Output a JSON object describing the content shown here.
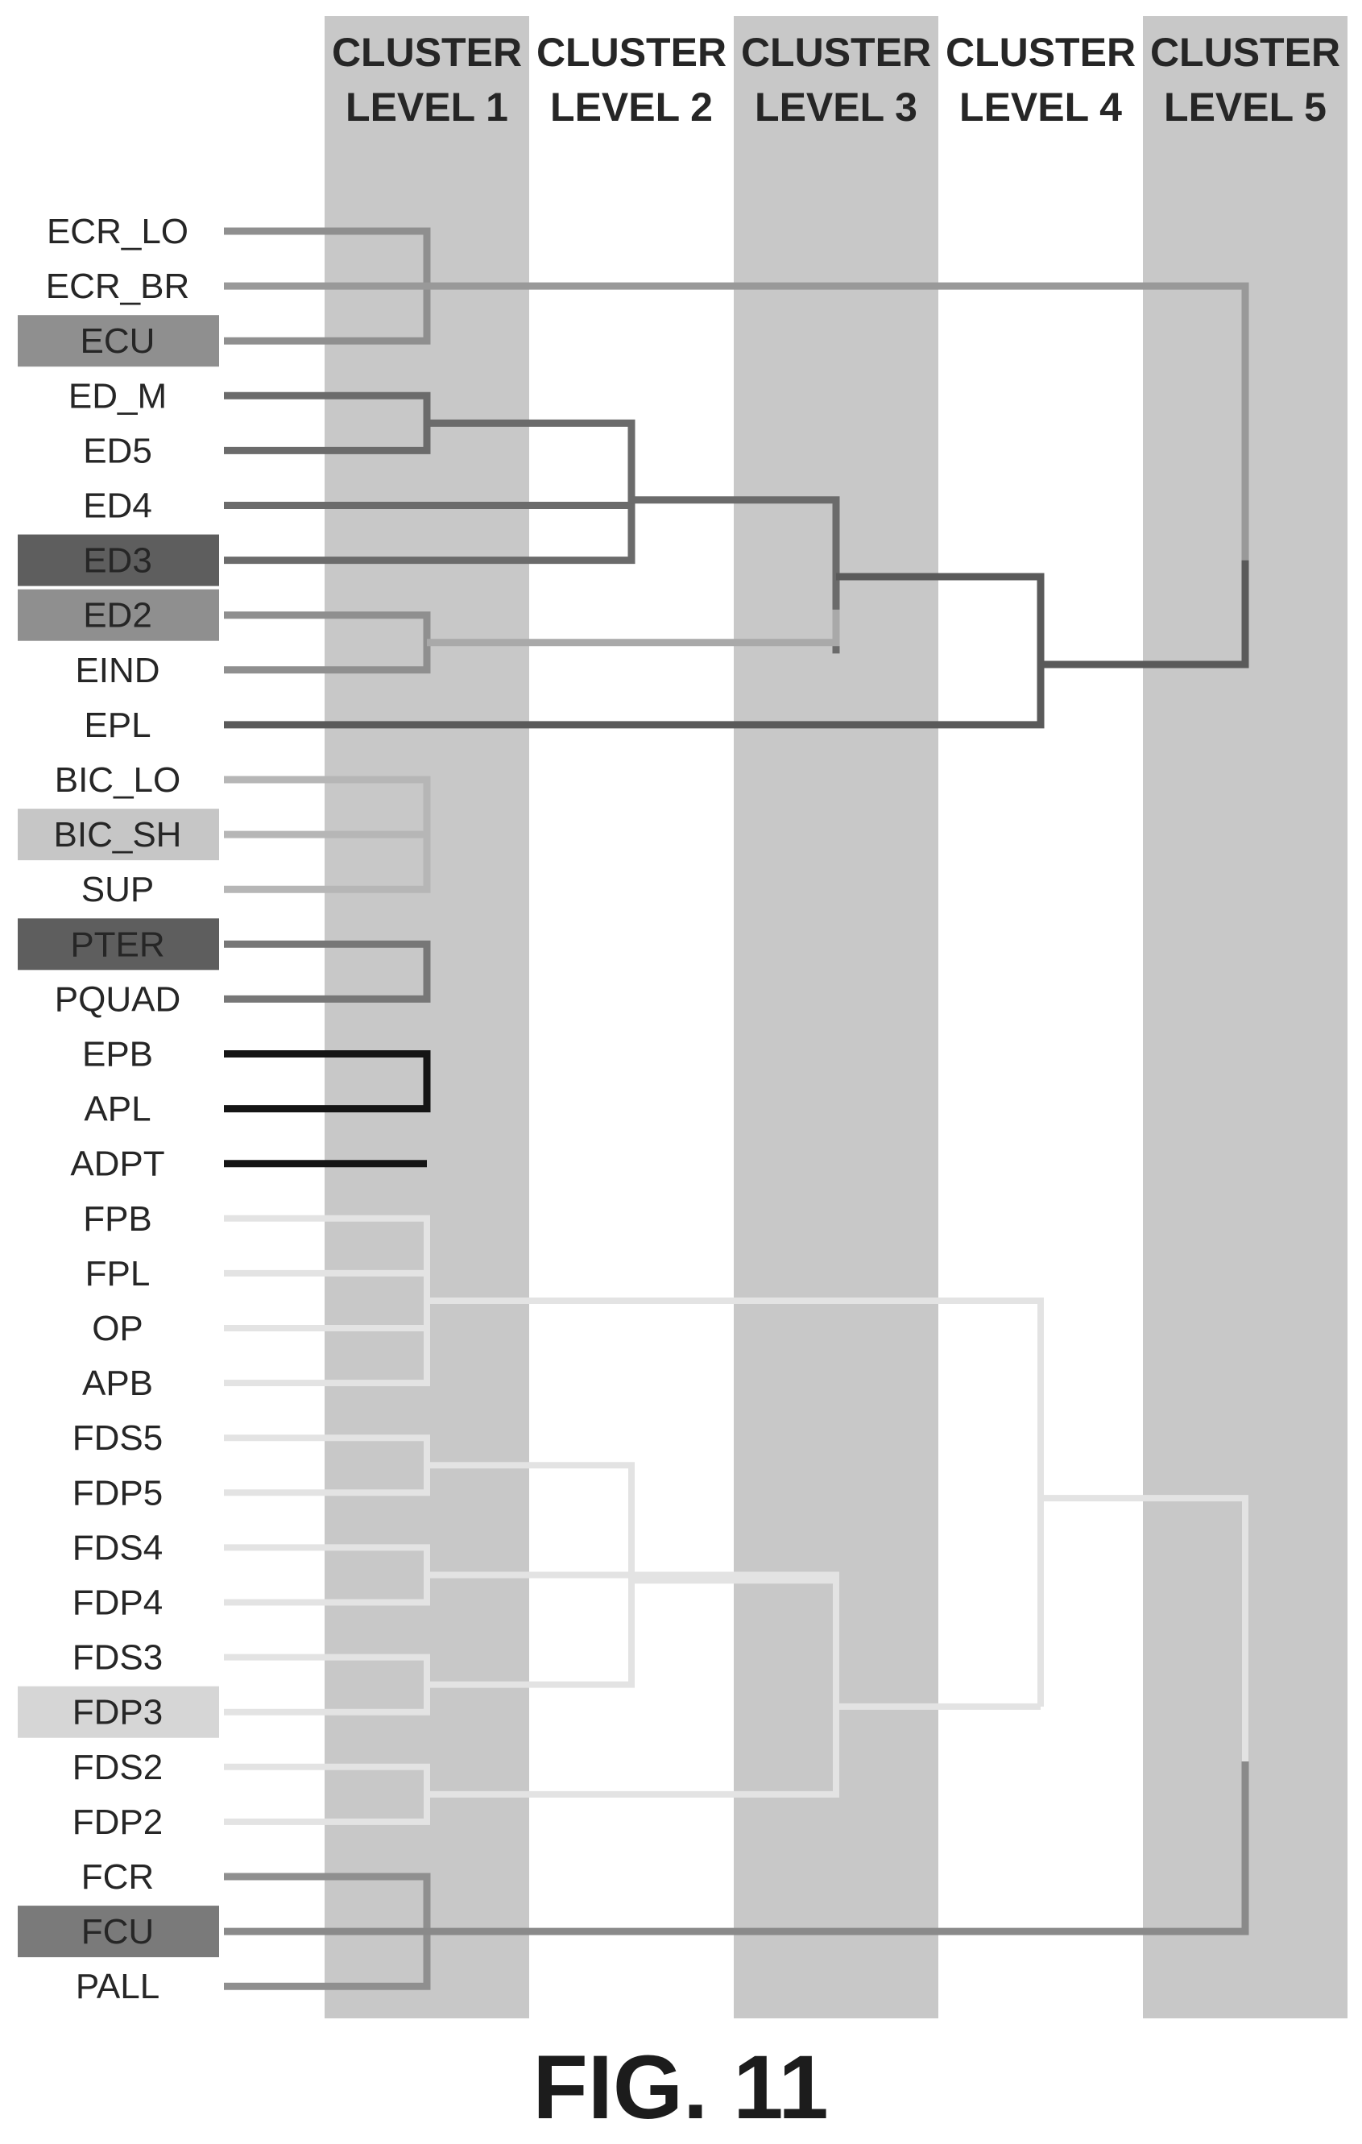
{
  "columns": [
    {
      "line1": "CLUSTER",
      "line2": "LEVEL 1"
    },
    {
      "line1": "CLUSTER",
      "line2": "LEVEL 2"
    },
    {
      "line1": "CLUSTER",
      "line2": "LEVEL 3"
    },
    {
      "line1": "CLUSTER",
      "line2": "LEVEL 4"
    },
    {
      "line1": "CLUSTER",
      "line2": "LEVEL 5"
    }
  ],
  "muscles": [
    {
      "label": "ECR_LO"
    },
    {
      "label": "ECR_BR"
    },
    {
      "label": "ECU",
      "highlight": "#8f8f8f"
    },
    {
      "label": "ED_M"
    },
    {
      "label": "ED5"
    },
    {
      "label": "ED4"
    },
    {
      "label": "ED3",
      "highlight": "#5e5e5e"
    },
    {
      "label": "ED2",
      "highlight": "#8f8f8f"
    },
    {
      "label": "EIND"
    },
    {
      "label": "EPL"
    },
    {
      "label": "BIC_LO"
    },
    {
      "label": "BIC_SH",
      "highlight": "#c6c6c6"
    },
    {
      "label": "SUP"
    },
    {
      "label": "PTER",
      "highlight": "#5e5e5e"
    },
    {
      "label": "PQUAD"
    },
    {
      "label": "EPB"
    },
    {
      "label": "APL"
    },
    {
      "label": "ADPT"
    },
    {
      "label": "FPB"
    },
    {
      "label": "FPL"
    },
    {
      "label": "OP"
    },
    {
      "label": "APB"
    },
    {
      "label": "FDS5"
    },
    {
      "label": "FDP5"
    },
    {
      "label": "FDS4"
    },
    {
      "label": "FDP4"
    },
    {
      "label": "FDS3"
    },
    {
      "label": "FDP3",
      "highlight": "#d6d6d6"
    },
    {
      "label": "FDS2"
    },
    {
      "label": "FDP2"
    },
    {
      "label": "FCR"
    },
    {
      "label": "FCU",
      "highlight": "#7a7a7a"
    },
    {
      "label": "PALL"
    }
  ],
  "figure_label": "FIG. 11"
}
